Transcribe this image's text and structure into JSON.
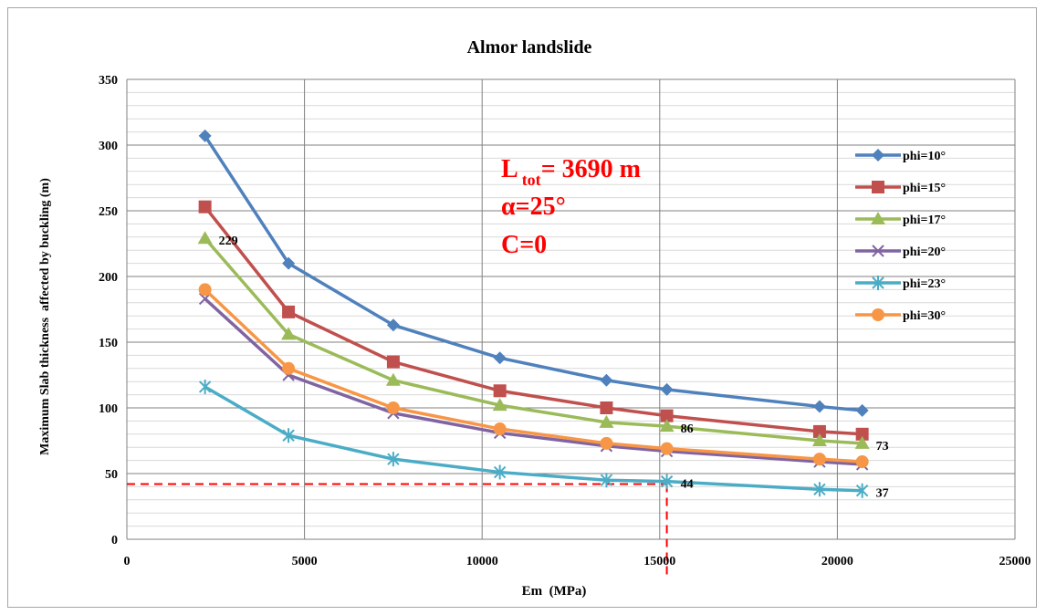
{
  "chart_data": {
    "type": "line",
    "title": "Almor landslide",
    "xlabel": "Em  (MPa)",
    "ylabel": "Maximum Slab thickness  affected by buckling (m)",
    "xlim": [
      0,
      25000
    ],
    "ylim": [
      0,
      350
    ],
    "x_ticks": [
      "0",
      "5000",
      "10000",
      "15000",
      "20000",
      "25000"
    ],
    "y_ticks": [
      "0",
      "50",
      "100",
      "150",
      "200",
      "250",
      "300",
      "350"
    ],
    "x_major_step": 5000,
    "y_major_step": 50,
    "y_minor_step": 10,
    "grid": true,
    "legend_position": "right",
    "x": [
      2200,
      4550,
      7500,
      10500,
      13500,
      15200,
      19500,
      20700
    ],
    "series": [
      {
        "name": "phi=10°",
        "color": "#4f81bd",
        "marker": "diamond",
        "values": [
          307,
          210,
          163,
          138,
          121,
          114,
          101,
          98
        ]
      },
      {
        "name": "phi=15°",
        "color": "#c0504d",
        "marker": "square",
        "values": [
          253,
          173,
          135,
          113,
          100,
          94,
          82,
          80
        ]
      },
      {
        "name": "phi=17°",
        "color": "#9bbb59",
        "marker": "triangle",
        "values": [
          229,
          156,
          121,
          102,
          89,
          86,
          75,
          73
        ]
      },
      {
        "name": "phi=20°",
        "color": "#8064a2",
        "marker": "x",
        "values": [
          183,
          125,
          96,
          81,
          71,
          67,
          59,
          57
        ]
      },
      {
        "name": "phi=23°",
        "color": "#4bacc6",
        "marker": "star",
        "values": [
          116,
          79,
          61,
          51,
          45,
          44,
          38,
          37
        ]
      },
      {
        "name": "phi=30°",
        "color": "#f79646",
        "marker": "circle",
        "values": [
          190,
          130,
          100,
          84,
          73,
          69,
          61,
          59
        ]
      }
    ],
    "data_labels": [
      {
        "series": 2,
        "point": 0,
        "text": "229"
      },
      {
        "series": 2,
        "point": 5,
        "text": "86"
      },
      {
        "series": 2,
        "point": 7,
        "text": "73"
      },
      {
        "series": 4,
        "point": 5,
        "text": "44"
      },
      {
        "series": 4,
        "point": 7,
        "text": "37"
      }
    ],
    "reference_point": {
      "x": 15200,
      "y": 42,
      "color": "#ff0000"
    },
    "annotation": {
      "line1_main": "L",
      "line1_sub": "tot",
      "line1_rest": "= 3690 m",
      "line2": "α=25°",
      "line3": "C=0",
      "color": "#ff0000"
    }
  }
}
